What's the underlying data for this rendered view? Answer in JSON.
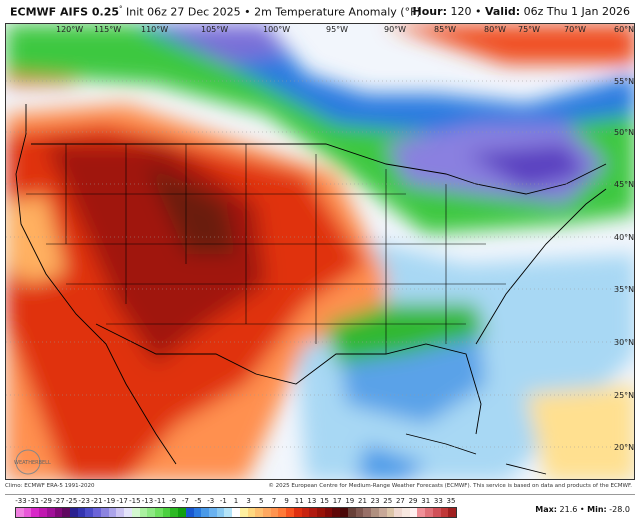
{
  "header": {
    "model": "ECMWF AIFS 0.25",
    "degree": "°",
    "init": "Init 06z 27 Dec 2025",
    "product": "2m Temperature Anomaly (°F)",
    "hour_label": "Hour:",
    "hour": "120",
    "valid_label": "Valid:",
    "valid": "06z Thu 1 Jan 2026",
    "separator": "•"
  },
  "map": {
    "longitude_labels": [
      "120°W",
      "115°W",
      "110°W",
      "105°W",
      "100°W",
      "95°W",
      "90°W",
      "85°W",
      "80°W",
      "75°W",
      "70°W",
      "60°N"
    ],
    "latitude_labels": [
      "55°N",
      "50°N",
      "45°N",
      "40°N",
      "35°N",
      "30°N",
      "25°N",
      "20°N"
    ],
    "watermark": "WEATHERBELL"
  },
  "footer": {
    "climo": "Climo: ECMWF ERA-5 1991-2020",
    "copyright": "© 2025 European Centre for Medium-Range Weather Forecasts (ECMWF). This service is based on data and products of the ECMWF."
  },
  "colorbar": {
    "labels": [
      "-33",
      "-31",
      "-29",
      "-27",
      "-25",
      "-23",
      "-21",
      "-19",
      "-17",
      "-15",
      "-13",
      "-11",
      "-9",
      "-7",
      "-5",
      "-3",
      "-1",
      "1",
      "3",
      "5",
      "7",
      "9",
      "11",
      "13",
      "15",
      "17",
      "19",
      "21",
      "23",
      "25",
      "27",
      "29",
      "31",
      "33",
      "35"
    ],
    "colors": [
      "#f080e0",
      "#e858d8",
      "#d828c8",
      "#c018b0",
      "#a01098",
      "#800878",
      "#600860",
      "#2a2090",
      "#3434b0",
      "#4c4cc8",
      "#6c64d8",
      "#8c84e0",
      "#aca4ea",
      "#ccc4f2",
      "#e4e4fa",
      "#d4f8d0",
      "#aaf0a0",
      "#8ee884",
      "#6ee060",
      "#4cd040",
      "#2cb824",
      "#10a010",
      "#1858d0",
      "#2a7ae0",
      "#4a9ae8",
      "#6ab2f0",
      "#8acaf2",
      "#b4e4f8",
      "#ffffff",
      "#fff0a0",
      "#ffd880",
      "#ffc070",
      "#ffa860",
      "#ff9450",
      "#ff7a38",
      "#f85420",
      "#e03010",
      "#c82410",
      "#b01a10",
      "#981208",
      "#800a08",
      "#600808",
      "#4a0808",
      "#684038",
      "#805850",
      "#987068",
      "#b09080",
      "#c8a898",
      "#dcc4a8",
      "#f0d8d0",
      "#f8e8e0",
      "#fff0f0",
      "#f09098",
      "#e07078",
      "#d05058",
      "#c03838",
      "#a02020"
    ]
  },
  "stats": {
    "max_label": "Max:",
    "max": "21.6",
    "min_label": "Min:",
    "min": "-28.0"
  }
}
